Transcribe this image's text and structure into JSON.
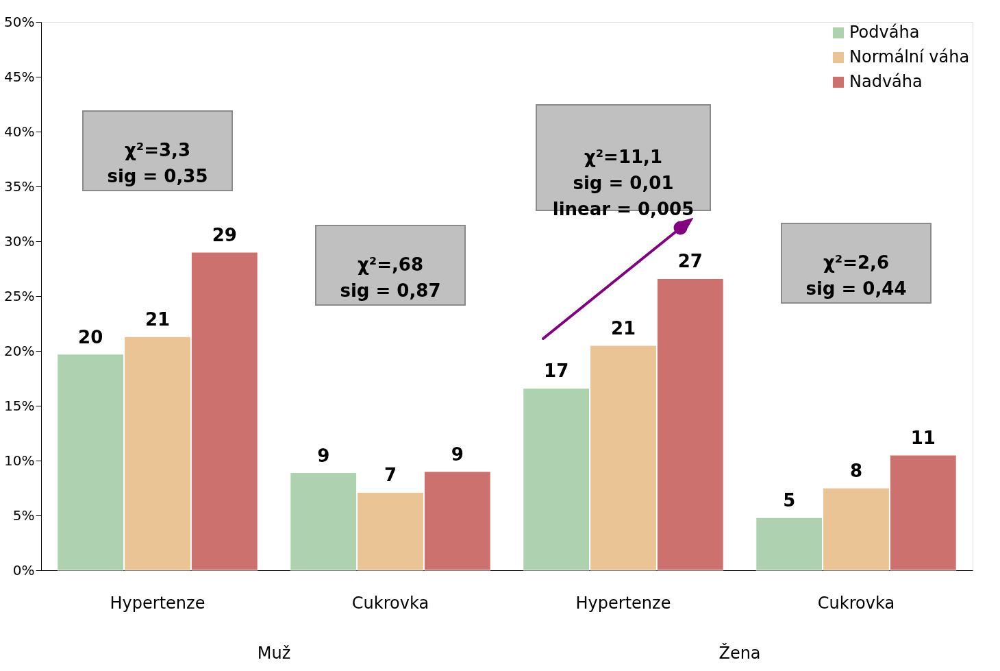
{
  "chart_data": {
    "type": "bar",
    "categories": [
      "Hypertenze",
      "Cukrovka",
      "Hypertenze",
      "Cukrovka"
    ],
    "series": [
      {
        "name": "Podváha",
        "color": "#aed1b0",
        "values": [
          19.7,
          8.9,
          16.6,
          4.8
        ],
        "value_labels": [
          "20",
          "9",
          "17",
          "5"
        ]
      },
      {
        "name": "Normální váha",
        "color": "#eac495",
        "values": [
          21.3,
          7.1,
          20.5,
          7.5
        ],
        "value_labels": [
          "21",
          "7",
          "21",
          "8"
        ]
      },
      {
        "name": "Nadváha",
        "color": "#cc716d",
        "values": [
          29.0,
          9.0,
          26.6,
          10.5
        ],
        "value_labels": [
          "29",
          "9",
          "27",
          "11"
        ]
      }
    ],
    "ylim": [
      0,
      50
    ],
    "yticks": [
      {
        "value": 0,
        "label": "0%"
      },
      {
        "value": 5,
        "label": "5%"
      },
      {
        "value": 10,
        "label": "10%"
      },
      {
        "value": 15,
        "label": "15%"
      },
      {
        "value": 20,
        "label": "20%"
      },
      {
        "value": 25,
        "label": "25%"
      },
      {
        "value": 30,
        "label": "30%"
      },
      {
        "value": 35,
        "label": "35%"
      },
      {
        "value": 40,
        "label": "40%"
      },
      {
        "value": 45,
        "label": "45%"
      },
      {
        "value": 50,
        "label": "50%"
      }
    ],
    "grid": false,
    "legend": "top right",
    "annotations": [
      "χ²=3,3\nsig = 0,35",
      "χ²=,68\nsig = 0,87",
      "χ²=11,1\nsig = 0,01\nlinear = 0,005",
      "χ²=2,6\nsig = 0,44",
      "Muž",
      "Žena"
    ]
  }
}
